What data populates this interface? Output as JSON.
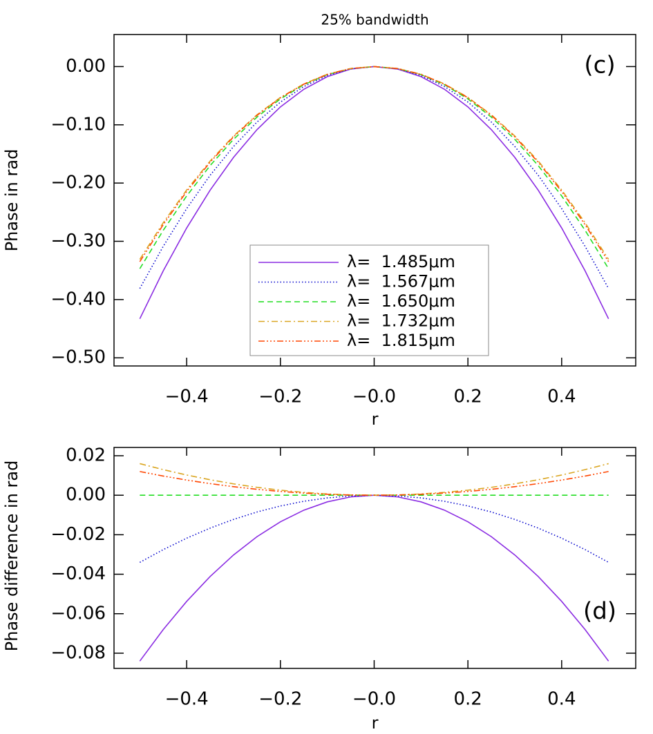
{
  "chart_data": [
    {
      "type": "line",
      "title": "25% bandwidth",
      "annotation": "(c)",
      "x_label": "r",
      "y_label": "Phase in rad",
      "x": [
        -0.5,
        -0.45,
        -0.4,
        -0.35,
        -0.3,
        -0.25,
        -0.2,
        -0.15,
        -0.1,
        -0.05,
        0,
        0.05,
        0.1,
        0.15,
        0.2,
        0.25,
        0.3,
        0.35,
        0.4,
        0.45,
        0.5
      ],
      "xlim": [
        -0.555,
        0.558
      ],
      "xticks": [
        {
          "value": -0.4,
          "label": "−0.4"
        },
        {
          "value": -0.2,
          "label": "−0.2"
        },
        {
          "value": 0,
          "label": "−0.0"
        },
        0.2,
        0.4
      ],
      "ylim": [
        -0.514,
        0.055
      ],
      "yticks": [
        {
          "value": 0,
          "label": "0.00"
        },
        {
          "value": -0.1,
          "label": "−0.10"
        },
        {
          "value": -0.2,
          "label": "−0.20"
        },
        {
          "value": -0.3,
          "label": "−0.30"
        },
        {
          "value": -0.4,
          "label": "−0.40"
        },
        {
          "value": -0.5,
          "label": "−0.50"
        }
      ],
      "legend": "lower center",
      "series": [
        {
          "name": "λ=  1.485μm",
          "color": "#8a2be2",
          "style": "solid",
          "values": [
            -0.433,
            -0.3507,
            -0.2771,
            -0.2122,
            -0.1559,
            -0.1083,
            -0.0693,
            -0.039,
            -0.0173,
            -0.0043,
            0,
            -0.0043,
            -0.0173,
            -0.039,
            -0.0693,
            -0.1083,
            -0.1559,
            -0.2122,
            -0.2771,
            -0.3507,
            -0.433
          ]
        },
        {
          "name": "λ=  1.567μm",
          "color": "#0000cd",
          "style": "dotted",
          "values": [
            -0.381,
            -0.3086,
            -0.2438,
            -0.1867,
            -0.1372,
            -0.0953,
            -0.061,
            -0.0343,
            -0.0152,
            -0.0038,
            0,
            -0.0038,
            -0.0152,
            -0.0343,
            -0.061,
            -0.0953,
            -0.1372,
            -0.1867,
            -0.2438,
            -0.3086,
            -0.381
          ]
        },
        {
          "name": "λ=  1.650μm",
          "color": "#22dd22",
          "style": "dashed",
          "values": [
            -0.347,
            -0.2811,
            -0.2221,
            -0.17,
            -0.1249,
            -0.0868,
            -0.0555,
            -0.0312,
            -0.0139,
            -0.0035,
            0,
            -0.0035,
            -0.0139,
            -0.0312,
            -0.0555,
            -0.0868,
            -0.1249,
            -0.17,
            -0.2221,
            -0.2811,
            -0.347
          ]
        },
        {
          "name": "λ=  1.732μm",
          "color": "#daa520",
          "style": "dashdot",
          "values": [
            -0.331,
            -0.2681,
            -0.2118,
            -0.1622,
            -0.1192,
            -0.0828,
            -0.053,
            -0.0298,
            -0.0132,
            -0.0033,
            0,
            -0.0033,
            -0.0132,
            -0.0298,
            -0.053,
            -0.0828,
            -0.1192,
            -0.1622,
            -0.2118,
            -0.2681,
            -0.331
          ]
        },
        {
          "name": "λ=  1.815μm",
          "color": "#ff4500",
          "style": "dashdotdotdot",
          "values": [
            -0.335,
            -0.2714,
            -0.2144,
            -0.1642,
            -0.1206,
            -0.0838,
            -0.0536,
            -0.0302,
            -0.0134,
            -0.0034,
            0,
            -0.0034,
            -0.0134,
            -0.0302,
            -0.0536,
            -0.0838,
            -0.1206,
            -0.1642,
            -0.2144,
            -0.2714,
            -0.335
          ]
        }
      ]
    },
    {
      "type": "line",
      "annotation": "(d)",
      "x_label": "r",
      "y_label": "Phase difference in rad",
      "x": [
        -0.5,
        -0.45,
        -0.4,
        -0.35,
        -0.3,
        -0.25,
        -0.2,
        -0.15,
        -0.1,
        -0.05,
        0,
        0.05,
        0.1,
        0.15,
        0.2,
        0.25,
        0.3,
        0.35,
        0.4,
        0.45,
        0.5
      ],
      "xlim": [
        -0.555,
        0.558
      ],
      "xticks": [
        {
          "value": -0.4,
          "label": "−0.4"
        },
        {
          "value": -0.2,
          "label": "−0.2"
        },
        {
          "value": 0,
          "label": "−0.0"
        },
        0.2,
        0.4
      ],
      "ylim": [
        -0.0877,
        0.0242
      ],
      "yticks": [
        0.02,
        {
          "value": 0,
          "label": "0.00"
        },
        {
          "value": -0.02,
          "label": "−0.02"
        },
        {
          "value": -0.04,
          "label": "−0.04"
        },
        {
          "value": -0.06,
          "label": "−0.06"
        },
        {
          "value": -0.08,
          "label": "−0.08"
        }
      ],
      "series": [
        {
          "color": "#8a2be2",
          "style": "solid",
          "values": [
            -0.084,
            -0.06804,
            -0.05376,
            -0.04116,
            -0.03024,
            -0.021,
            -0.01344,
            -0.00756,
            -0.00336,
            -0.00084,
            0,
            -0.00084,
            -0.00336,
            -0.00756,
            -0.01344,
            -0.021,
            -0.03024,
            -0.04116,
            -0.05376,
            -0.06804,
            -0.084
          ]
        },
        {
          "color": "#0000cd",
          "style": "dotted",
          "values": [
            -0.034,
            -0.02754,
            -0.02176,
            -0.01666,
            -0.01224,
            -0.0085,
            -0.00544,
            -0.00306,
            -0.00136,
            -0.00034,
            0,
            -0.00034,
            -0.00136,
            -0.00306,
            -0.00544,
            -0.0085,
            -0.01224,
            -0.01666,
            -0.02176,
            -0.02754,
            -0.034
          ]
        },
        {
          "color": "#22dd22",
          "style": "dashed",
          "values": [
            0,
            0,
            0,
            0,
            0,
            0,
            0,
            0,
            0,
            0,
            0,
            0,
            0,
            0,
            0,
            0,
            0,
            0,
            0,
            0,
            0
          ]
        },
        {
          "color": "#daa520",
          "style": "dashdot",
          "values": [
            0.016,
            0.01296,
            0.01024,
            0.00784,
            0.00576,
            0.004,
            0.00256,
            0.00144,
            0.00064,
            0.00016,
            0,
            0.00016,
            0.00064,
            0.00144,
            0.00256,
            0.004,
            0.00576,
            0.00784,
            0.01024,
            0.01296,
            0.016
          ]
        },
        {
          "color": "#ff4500",
          "style": "dashdotdotdot",
          "values": [
            0.012,
            0.00972,
            0.00768,
            0.00588,
            0.00432,
            0.003,
            0.00192,
            0.00108,
            0.00048,
            0.00012,
            0,
            0.00012,
            0.00048,
            0.00108,
            0.00192,
            0.003,
            0.00432,
            0.00588,
            0.00768,
            0.00972,
            0.012
          ]
        }
      ]
    }
  ]
}
